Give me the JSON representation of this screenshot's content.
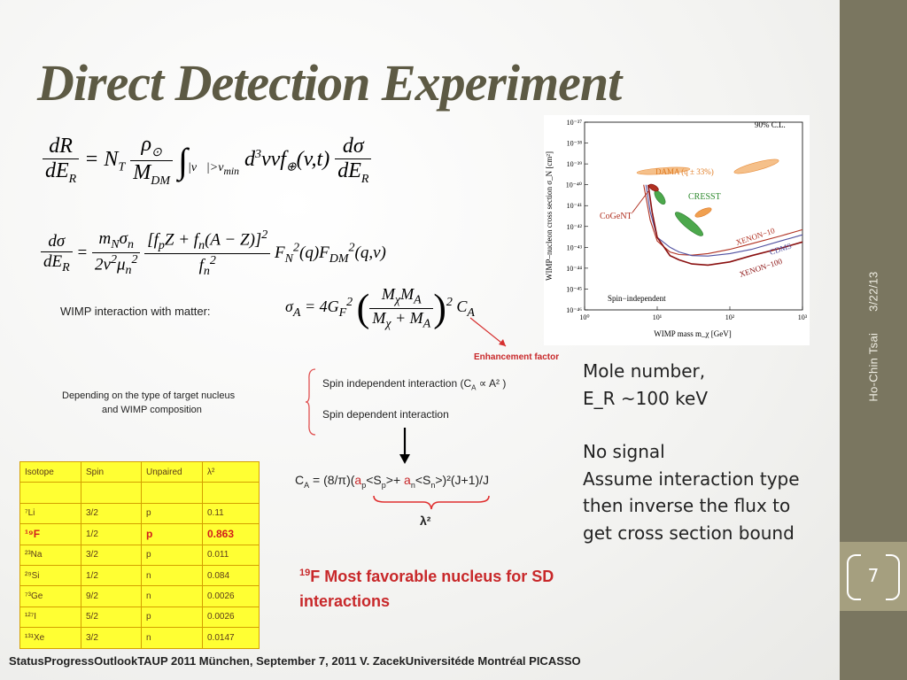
{
  "slide": {
    "title": "Direct Detection Experiment",
    "sidebar": {
      "date": "3/22/13",
      "author": "Ho-Chin Tsai"
    },
    "page_number": "7",
    "footer": "StatusProgressOutlookTAUP 2011 München, September 7, 2011 V. ZacekUniversitéde Montréal PICASSO"
  },
  "labels": {
    "wimp_interaction": "WIMP interaction with matter:",
    "enhancement": "Enhancement factor",
    "depending": "Depending on the type of target nucleus",
    "depending2": "and WIMP composition",
    "spin_independent": "Spin independent interaction (C",
    "spin_independent_tail": "A",
    "spin_dependent": "Spin dependent interaction",
    "ca_formula_prefix": "C",
    "ca_formula": " = (8/π)(",
    "lambda": "λ²",
    "favorable_1": "F Most favorable nucleus for SD",
    "favorable_sup": "19",
    "favorable_2": "interactions"
  },
  "notes": [
    "Mole number,",
    "E_R ~100 keV",
    "",
    "No signal",
    "Assume interaction type",
    "then inverse the flux to",
    "get cross section bound"
  ],
  "isotope_table": {
    "headers": [
      "Isotope",
      "Spin",
      "Unpaired",
      "λ²"
    ],
    "rows": [
      [
        "",
        "",
        "",
        ""
      ],
      [
        "⁷Li",
        "3/2",
        "p",
        "0.11"
      ],
      [
        "¹⁹F",
        "1/2",
        "p",
        "0.863"
      ],
      [
        "²³Na",
        "3/2",
        "p",
        "0.011"
      ],
      [
        "²⁹Si",
        "1/2",
        "n",
        "0.084"
      ],
      [
        "⁷³Ge",
        "9/2",
        "n",
        "0.0026"
      ],
      [
        "¹²⁷I",
        "5/2",
        "p",
        "0.0026"
      ],
      [
        "¹³¹Xe",
        "3/2",
        "n",
        "0.0147"
      ]
    ],
    "highlight_row": 2
  },
  "chart_data": {
    "type": "line",
    "xlabel": "WIMP mass m_χ [GeV]",
    "ylabel": "WIMP–nucleon cross section σ_N [cm²]",
    "xscale": "log",
    "yscale": "log",
    "xlim": [
      1,
      1000
    ],
    "ylim": [
      1e-46,
      1e-37
    ],
    "x_ticks": [
      "10⁰",
      "10¹",
      "10²",
      "10³"
    ],
    "y_ticks": [
      "10⁻³⁷",
      "10⁻³⁸",
      "10⁻³⁹",
      "10⁻⁴⁰",
      "10⁻⁴¹",
      "10⁻⁴²",
      "10⁻⁴³",
      "10⁻⁴⁴",
      "10⁻⁴⁵",
      "10⁻⁴⁶"
    ],
    "annotations": [
      "90% C.L.",
      "Spin−independent"
    ],
    "series": [
      {
        "name": "XENON−10",
        "color": "#b03020",
        "x": [
          6.5,
          8,
          10,
          15,
          20,
          30,
          50,
          100,
          200,
          500,
          1000
        ],
        "y": [
          1e-40,
          2e-42,
          2e-43,
          6e-44,
          4.5e-44,
          4.2e-44,
          5e-44,
          8e-44,
          1.5e-43,
          3.5e-43,
          7e-43
        ]
      },
      {
        "name": "CDMS",
        "color": "#5050a0",
        "x": [
          7,
          8,
          10,
          15,
          20,
          30,
          50,
          100,
          200,
          500,
          1000
        ],
        "y": [
          1e-40,
          5e-42,
          3e-43,
          1e-43,
          6e-44,
          4e-44,
          3.8e-44,
          5e-44,
          8e-44,
          2e-43,
          4e-43
        ]
      },
      {
        "name": "XENON−100",
        "color": "#8a1010",
        "x": [
          7.5,
          8.5,
          10,
          15,
          20,
          30,
          50,
          100,
          200,
          500,
          1000
        ],
        "y": [
          1e-40,
          5e-42,
          3e-43,
          4e-44,
          2.5e-44,
          1.6e-44,
          1.4e-44,
          2e-44,
          4e-44,
          9e-44,
          1.8e-43
        ]
      }
    ],
    "regions": [
      {
        "name": "DAMA (q ± 33%)",
        "color": "#f0a050"
      },
      {
        "name": "CRESST",
        "color": "#3a9a3a"
      },
      {
        "name": "CoGeNT",
        "color": "#b03020"
      }
    ]
  }
}
